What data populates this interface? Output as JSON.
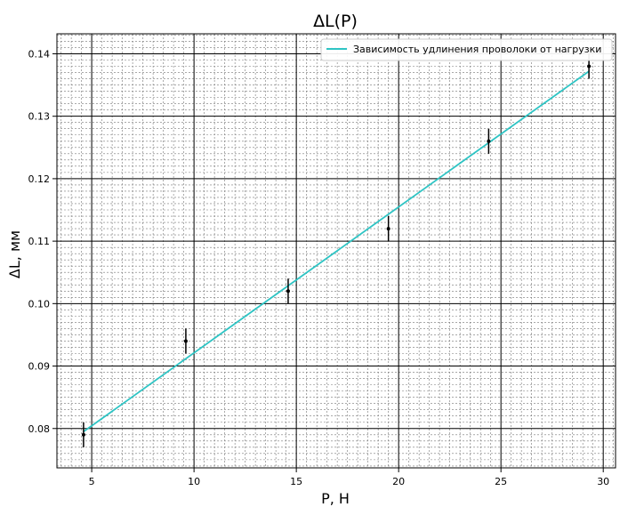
{
  "chart_data": {
    "type": "scatter",
    "title": "ΔL(P)",
    "xlabel": "P, Н",
    "ylabel": "ΔL, мм",
    "xlim": [
      3.3,
      30.6
    ],
    "ylim": [
      0.0737,
      0.1432
    ],
    "x_ticks": [
      5,
      10,
      15,
      20,
      25,
      30
    ],
    "y_ticks": [
      0.08,
      0.09,
      0.1,
      0.11,
      0.12,
      0.13,
      0.14
    ],
    "x_tick_labels": [
      "5",
      "10",
      "15",
      "20",
      "25",
      "30"
    ],
    "y_tick_labels": [
      "0.08",
      "0.09",
      "0.10",
      "0.11",
      "0.12",
      "0.13",
      "0.14"
    ],
    "grid": "major and minor",
    "legend_position": "top-right",
    "points": {
      "x": [
        4.6,
        9.6,
        14.6,
        19.5,
        24.4,
        29.3
      ],
      "y": [
        0.079,
        0.094,
        0.102,
        0.112,
        0.126,
        0.138
      ],
      "yerr": [
        0.002,
        0.002,
        0.002,
        0.002,
        0.002,
        0.002
      ],
      "color": "#000000"
    },
    "series": [
      {
        "name": "Зависимость удлинения проволоки от нагрузки",
        "type": "line",
        "x": [
          4.6,
          29.3
        ],
        "y": [
          0.0795,
          0.1372
        ],
        "color": "#2ec4c4"
      }
    ]
  }
}
